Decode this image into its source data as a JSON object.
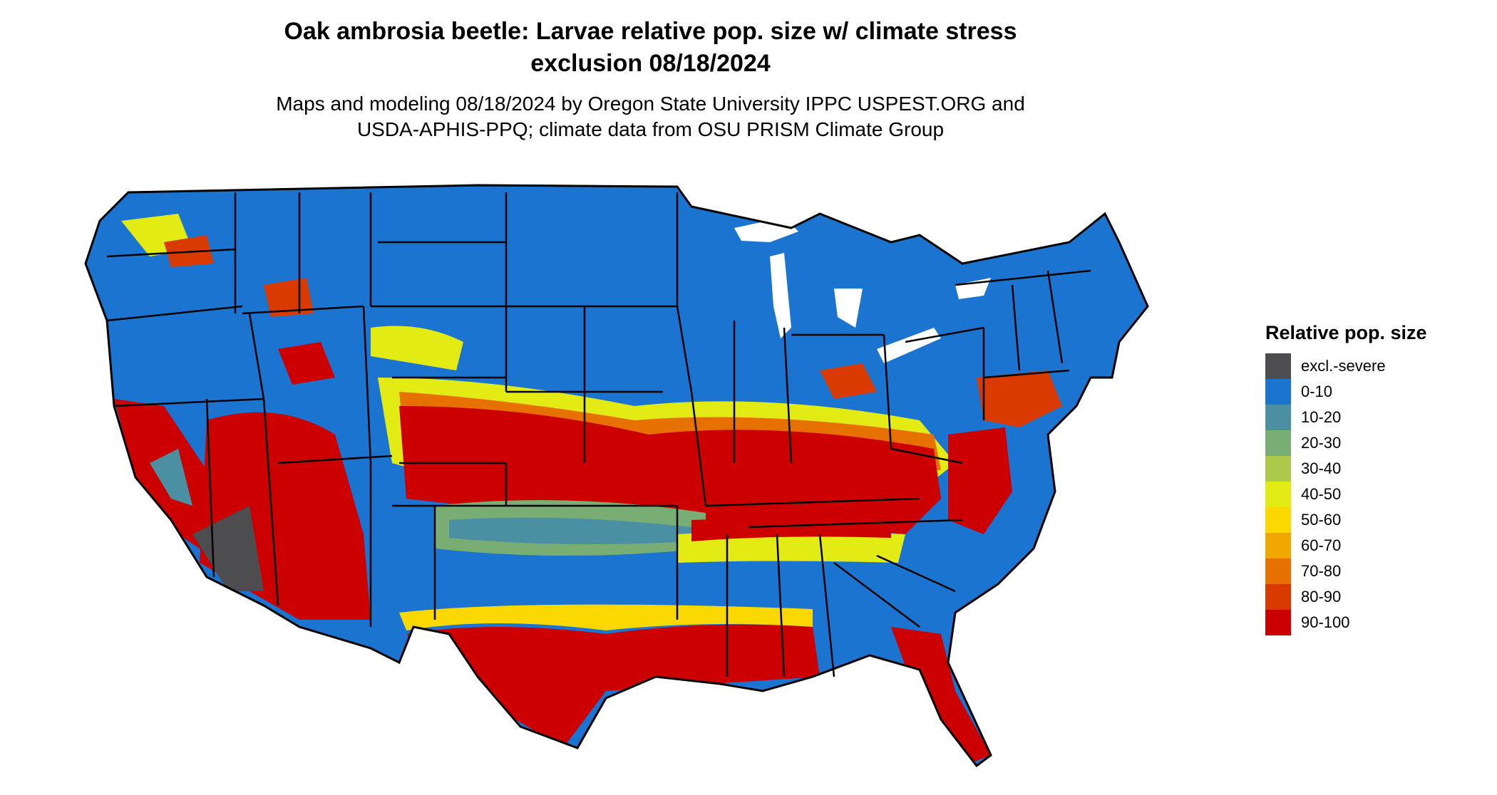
{
  "title_line1": "Oak ambrosia beetle: Larvae relative pop. size w/ climate stress",
  "title_line2": "exclusion 08/18/2024",
  "subtitle_line1": "Maps and modeling 08/18/2024 by Oregon State University IPPC USPEST.ORG and",
  "subtitle_line2": "USDA-APHIS-PPQ; climate data from OSU PRISM Climate Group",
  "legend": {
    "title": "Relative pop. size",
    "items": [
      {
        "label": "excl.-severe",
        "color": "#4d4d4f"
      },
      {
        "label": "0-10",
        "color": "#1b74d0"
      },
      {
        "label": "10-20",
        "color": "#4a8fa2"
      },
      {
        "label": "20-30",
        "color": "#78ad74"
      },
      {
        "label": "30-40",
        "color": "#aac94a"
      },
      {
        "label": "40-50",
        "color": "#e2ec14"
      },
      {
        "label": "50-60",
        "color": "#fad800"
      },
      {
        "label": "60-70",
        "color": "#f0a700"
      },
      {
        "label": "70-80",
        "color": "#e67000"
      },
      {
        "label": "80-90",
        "color": "#d93a00"
      },
      {
        "label": "90-100",
        "color": "#cc0000"
      }
    ]
  }
}
